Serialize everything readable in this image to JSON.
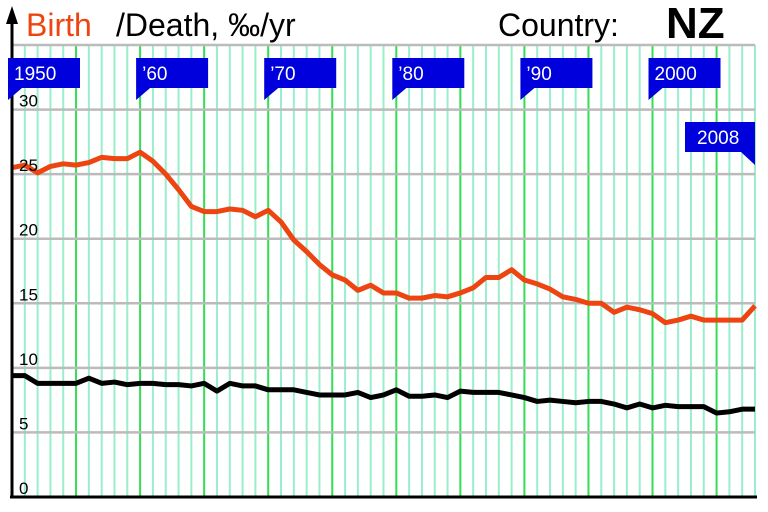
{
  "chart_data": {
    "type": "line",
    "title": "/Death, ‰/yr",
    "country_label": "Country:",
    "country": "NZ",
    "x": [
      1950,
      1951,
      1952,
      1953,
      1954,
      1955,
      1956,
      1957,
      1958,
      1959,
      1960,
      1961,
      1962,
      1963,
      1964,
      1965,
      1966,
      1967,
      1968,
      1969,
      1970,
      1971,
      1972,
      1973,
      1974,
      1975,
      1976,
      1977,
      1978,
      1979,
      1980,
      1981,
      1982,
      1983,
      1984,
      1985,
      1986,
      1987,
      1988,
      1989,
      1990,
      1991,
      1992,
      1993,
      1994,
      1995,
      1996,
      1997,
      1998,
      1999,
      2000,
      2001,
      2002,
      2003,
      2004,
      2005,
      2006,
      2007,
      2008
    ],
    "series": [
      {
        "name": "Birth",
        "color": "#ee4411",
        "values": [
          25.5,
          25.7,
          25.1,
          25.6,
          25.8,
          25.7,
          25.9,
          26.3,
          26.2,
          26.2,
          26.7,
          26.0,
          25.0,
          23.8,
          22.5,
          22.1,
          22.1,
          22.3,
          22.2,
          21.7,
          22.2,
          21.3,
          19.9,
          19.0,
          18.0,
          17.2,
          16.8,
          16.0,
          16.4,
          15.8,
          15.8,
          15.4,
          15.4,
          15.6,
          15.5,
          15.8,
          16.2,
          17.0,
          17.0,
          17.6,
          16.8,
          16.5,
          16.1,
          15.5,
          15.3,
          15.0,
          15.0,
          14.3,
          14.7,
          14.5,
          14.2,
          13.5,
          13.7,
          14.0,
          13.7,
          13.7,
          13.7,
          13.7,
          14.8
        ]
      },
      {
        "color": "#000000",
        "values": [
          9.4,
          9.4,
          8.8,
          8.8,
          8.8,
          8.8,
          9.2,
          8.8,
          8.9,
          8.7,
          8.8,
          8.8,
          8.7,
          8.7,
          8.6,
          8.8,
          8.2,
          8.8,
          8.6,
          8.6,
          8.3,
          8.3,
          8.3,
          8.1,
          7.9,
          7.9,
          7.9,
          8.1,
          7.7,
          7.9,
          8.3,
          7.8,
          7.8,
          7.9,
          7.7,
          8.2,
          8.1,
          8.1,
          8.1,
          7.9,
          7.7,
          7.4,
          7.5,
          7.4,
          7.3,
          7.4,
          7.4,
          7.2,
          6.9,
          7.2,
          6.9,
          7.1,
          7.0,
          7.0,
          7.0,
          6.5,
          6.6,
          6.8,
          6.8
        ]
      }
    ],
    "xlim": [
      1950,
      2008
    ],
    "xticks": [
      1950,
      {
        "value": 1960,
        "label": "’60"
      },
      {
        "value": 1970,
        "label": "’70"
      },
      {
        "value": 1980,
        "label": "’80"
      },
      {
        "value": 1990,
        "label": "’90"
      },
      2000,
      2008
    ],
    "ylim": [
      0,
      35
    ],
    "yticks": [
      0,
      5,
      10,
      15,
      20,
      25,
      30
    ],
    "grid": true
  }
}
